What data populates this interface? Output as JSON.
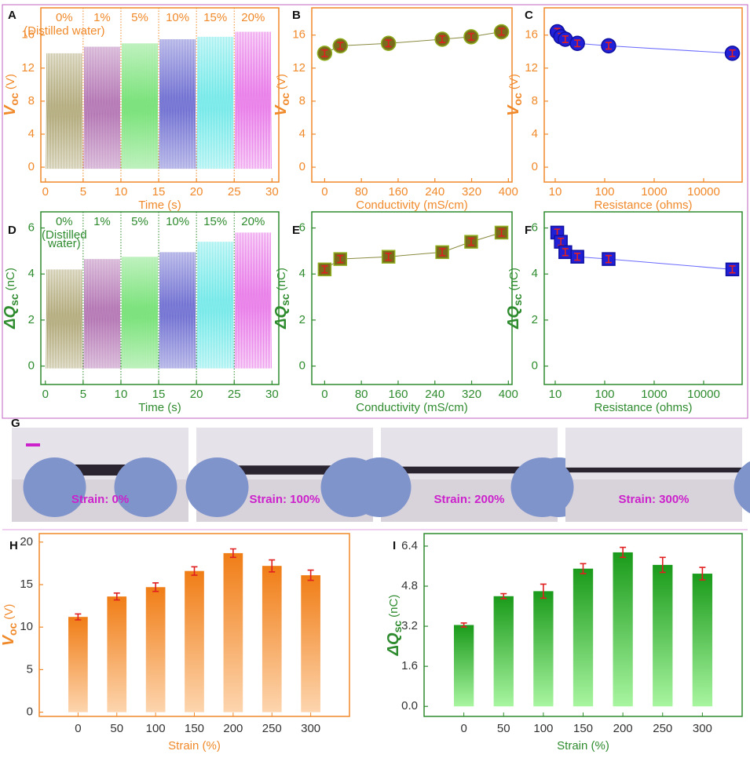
{
  "chart_data": [
    {
      "type": "signal",
      "panel": "A",
      "xlabel": "Time (s)",
      "ylabel": {
        "main": "V",
        "sub": "oc",
        "unit": "(V)"
      },
      "axis_color": "#f0892a",
      "tick_label_color": "#f0892a",
      "xlim": [
        -0.6,
        30.9
      ],
      "xticks": [
        0,
        5,
        10,
        15,
        20,
        25,
        30
      ],
      "ylim": [
        -1.8,
        19.3
      ],
      "yticks": [
        0,
        4,
        8,
        12,
        16
      ],
      "series": [
        {
          "name": "0%",
          "note": [
            "(Distilled water)"
          ],
          "color": "#b0a878",
          "xrange": [
            0,
            5
          ],
          "peak": 13.8,
          "trough": -0.2
        },
        {
          "name": "1%",
          "color": "#b070b0",
          "xrange": [
            5,
            10
          ],
          "peak": 14.6,
          "trough": -0.2
        },
        {
          "name": "5%",
          "color": "#70e070",
          "xrange": [
            10,
            15
          ],
          "peak": 15.0,
          "trough": -0.2
        },
        {
          "name": "10%",
          "color": "#6a6ad0",
          "xrange": [
            15,
            20
          ],
          "peak": 15.5,
          "trough": -0.2
        },
        {
          "name": "15%",
          "color": "#70e8e8",
          "xrange": [
            20,
            25
          ],
          "peak": 15.8,
          "trough": -0.2
        },
        {
          "name": "20%",
          "color": "#e878e8",
          "xrange": [
            25,
            30
          ],
          "peak": 16.4,
          "trough": -0.2
        }
      ]
    },
    {
      "type": "scatter",
      "panel": "B",
      "xlabel": "Conductivity (mS/cm)",
      "ylabel": {
        "main": "V",
        "sub": "oc",
        "unit": "(V)"
      },
      "axis_color": "#f0892a",
      "tick_label_color": "#f0892a",
      "xscale": "linear",
      "xlim": [
        -28,
        408
      ],
      "xticks": [
        0,
        80,
        160,
        240,
        320,
        400
      ],
      "ylim": [
        -1.8,
        19.3
      ],
      "yticks": [
        0,
        4,
        8,
        12,
        16
      ],
      "x": [
        0,
        34,
        139,
        256,
        319,
        385
      ],
      "values": [
        13.8,
        14.7,
        15.0,
        15.5,
        15.8,
        16.4
      ],
      "errors": [
        0.4,
        0.4,
        0.4,
        0.4,
        0.4,
        0.4
      ],
      "marker": "circle",
      "color": "#7a6a1c",
      "edge_color": "#8fb020",
      "line_color": "#8a8a40",
      "error_color": "#e02020"
    },
    {
      "type": "scatter",
      "panel": "C",
      "xlabel": "Resistance (ohms)",
      "ylabel": {
        "main": "V",
        "sub": "oc",
        "unit": "(V)"
      },
      "axis_color": "#f0892a",
      "tick_label_color": "#f0892a",
      "xscale": "log",
      "xlim": [
        6,
        60000
      ],
      "xticks": [
        10,
        100,
        1000,
        10000
      ],
      "ylim": [
        -1.8,
        19.3
      ],
      "yticks": [
        0,
        4,
        8,
        12,
        16
      ],
      "x": [
        11,
        13,
        16,
        28,
        120,
        38000
      ],
      "values": [
        16.4,
        15.8,
        15.5,
        15.0,
        14.7,
        13.8
      ],
      "errors": [
        0.4,
        0.4,
        0.4,
        0.4,
        0.4,
        0.4
      ],
      "marker": "circle",
      "color": "#2020d8",
      "edge_color": "#1010a0",
      "line_color": "#6a6aff",
      "error_color": "#e02020"
    },
    {
      "type": "signal",
      "panel": "D",
      "xlabel": "Time (s)",
      "ylabel": {
        "main": "ΔQ",
        "sub": "sc",
        "unit": "(nC)"
      },
      "axis_color": "#2e8b2e",
      "tick_label_color": "#2e8b2e",
      "xlim": [
        -0.6,
        30.9
      ],
      "xticks": [
        0,
        5,
        10,
        15,
        20,
        25,
        30
      ],
      "ylim": [
        -0.8,
        6.7
      ],
      "yticks": [
        0,
        2,
        4,
        6
      ],
      "series": [
        {
          "name": "0%",
          "note": [
            "(Distilled",
            "water)"
          ],
          "color": "#b0a878",
          "xrange": [
            0,
            5
          ],
          "peak": 4.2,
          "trough": -0.1
        },
        {
          "name": "1%",
          "color": "#b070b0",
          "xrange": [
            5,
            10
          ],
          "peak": 4.65,
          "trough": -0.1
        },
        {
          "name": "5%",
          "color": "#70e070",
          "xrange": [
            10,
            15
          ],
          "peak": 4.75,
          "trough": -0.1
        },
        {
          "name": "10%",
          "color": "#6a6ad0",
          "xrange": [
            15,
            20
          ],
          "peak": 4.95,
          "trough": -0.1
        },
        {
          "name": "15%",
          "color": "#70e8e8",
          "xrange": [
            20,
            25
          ],
          "peak": 5.4,
          "trough": -0.1
        },
        {
          "name": "20%",
          "color": "#e878e8",
          "xrange": [
            25,
            30
          ],
          "peak": 5.8,
          "trough": -0.1
        }
      ]
    },
    {
      "type": "scatter",
      "panel": "E",
      "xlabel": "Conductivity (mS/cm)",
      "ylabel": {
        "main": "ΔQ",
        "sub": "sc",
        "unit": "(nC)"
      },
      "axis_color": "#2e8b2e",
      "tick_label_color": "#2e8b2e",
      "xscale": "linear",
      "xlim": [
        -28,
        408
      ],
      "xticks": [
        0,
        80,
        160,
        240,
        320,
        400
      ],
      "ylim": [
        -0.8,
        6.7
      ],
      "yticks": [
        0,
        2,
        4,
        6
      ],
      "x": [
        0,
        34,
        139,
        256,
        319,
        385
      ],
      "values": [
        4.2,
        4.65,
        4.75,
        4.95,
        5.4,
        5.8
      ],
      "errors": [
        0.15,
        0.15,
        0.15,
        0.15,
        0.15,
        0.15
      ],
      "marker": "square",
      "color": "#7a6a1c",
      "edge_color": "#8fb020",
      "line_color": "#8a8a40",
      "error_color": "#e02020"
    },
    {
      "type": "scatter",
      "panel": "F",
      "xlabel": "Resistance (ohms)",
      "ylabel": {
        "main": "ΔQ",
        "sub": "sc",
        "unit": "(nC)"
      },
      "axis_color": "#2e8b2e",
      "tick_label_color": "#2e8b2e",
      "xscale": "log",
      "xlim": [
        6,
        60000
      ],
      "xticks": [
        10,
        100,
        1000,
        10000
      ],
      "ylim": [
        -0.8,
        6.7
      ],
      "yticks": [
        0,
        2,
        4,
        6
      ],
      "x": [
        11,
        13,
        16,
        28,
        120,
        38000
      ],
      "values": [
        5.8,
        5.4,
        4.95,
        4.75,
        4.65,
        4.2
      ],
      "errors": [
        0.15,
        0.15,
        0.15,
        0.15,
        0.15,
        0.15
      ],
      "marker": "square",
      "color": "#2020d8",
      "edge_color": "#1010a0",
      "line_color": "#6a6aff",
      "error_color": "#e02020"
    },
    {
      "type": "photo",
      "panel": "G",
      "label_color": "#cc22cc",
      "frames": [
        "Strain: 0%",
        "Strain: 100%",
        "Strain: 200%",
        "Strain: 300%"
      ]
    },
    {
      "type": "bar",
      "panel": "H",
      "xlabel": "Strain (%)",
      "ylabel": {
        "main": "V",
        "sub": "oc",
        "unit": "(V)"
      },
      "axis_color": "#f0892a",
      "tick_label_color": "#333333",
      "categories": [
        "0",
        "50",
        "100",
        "150",
        "200",
        "250",
        "300"
      ],
      "values": [
        11.2,
        13.6,
        14.7,
        16.6,
        18.7,
        17.2,
        16.1
      ],
      "errors": [
        0.35,
        0.4,
        0.5,
        0.5,
        0.5,
        0.7,
        0.6
      ],
      "ylim": [
        -0.5,
        21
      ],
      "yticks": [
        0,
        5,
        10,
        15,
        20
      ],
      "gradient": [
        "#f07d16",
        "#fdd5ae"
      ],
      "error_color": "#e02020"
    },
    {
      "type": "bar",
      "panel": "I",
      "xlabel": "Strain (%)",
      "ylabel": {
        "main": "ΔQ",
        "sub": "sc",
        "unit": "(nC)"
      },
      "axis_color": "#2e8b2e",
      "tick_label_color": "#333333",
      "categories": [
        "0",
        "50",
        "100",
        "150",
        "200",
        "250",
        "300"
      ],
      "values": [
        3.25,
        4.4,
        4.6,
        5.5,
        6.15,
        5.65,
        5.3
      ],
      "errors": [
        0.08,
        0.1,
        0.28,
        0.2,
        0.2,
        0.3,
        0.25
      ],
      "ylim": [
        -0.4,
        6.9
      ],
      "yticks": [
        {
          "value": 0,
          "label": "0.0"
        },
        1.6,
        3.2,
        4.8,
        6.4
      ],
      "gradient": [
        "#1a9a1a",
        "#a8f5a0"
      ],
      "error_color": "#e02020"
    }
  ]
}
